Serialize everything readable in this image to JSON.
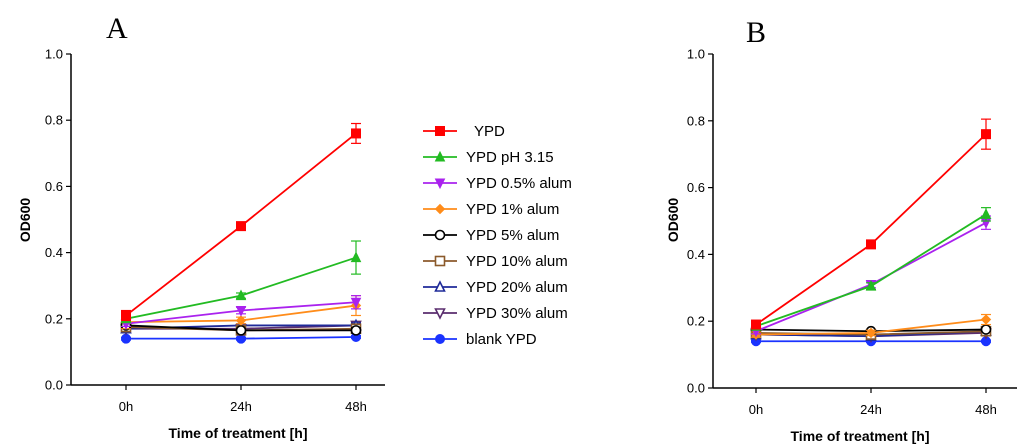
{
  "legend": {
    "entries": [
      {
        "label": "YPD",
        "color": "#ff0000",
        "marker": "square"
      },
      {
        "label": "YPD pH 3.15",
        "color": "#22bb22",
        "marker": "triangle-up"
      },
      {
        "label": "YPD 0.5% alum",
        "color": "#aa22ee",
        "marker": "triangle-down"
      },
      {
        "label": "YPD 1% alum",
        "color": "#ff8c1a",
        "marker": "diamond"
      },
      {
        "label": "YPD 5% alum",
        "color": "#000000",
        "marker": "circle-open"
      },
      {
        "label": "YPD 10% alum",
        "color": "#8b5a2b",
        "marker": "square-open"
      },
      {
        "label": "YPD 20% alum",
        "color": "#1f2a99",
        "marker": "triangle-up-open"
      },
      {
        "label": "YPD 30% alum",
        "color": "#5a2d6e",
        "marker": "triangle-down-open"
      },
      {
        "label": "blank YPD",
        "color": "#1a33ff",
        "marker": "circle"
      }
    ]
  },
  "chart_data": [
    {
      "panel": "A",
      "type": "line",
      "xlabel": "Time of treatment [h]",
      "ylabel": "OD600",
      "categories": [
        "0h",
        "24h",
        "48h"
      ],
      "ylim": [
        0,
        1.0
      ],
      "yticks": [
        "0.0",
        "0.2",
        "0.4",
        "0.6",
        "0.8",
        "1.0"
      ],
      "series": [
        {
          "name": "YPD",
          "values": [
            0.21,
            0.48,
            0.76
          ],
          "err": [
            0.015,
            0.008,
            0.03
          ]
        },
        {
          "name": "YPD pH 3.15",
          "values": [
            0.2,
            0.27,
            0.385
          ],
          "err": [
            0.008,
            0.008,
            0.05
          ]
        },
        {
          "name": "YPD 0.5% alum",
          "values": [
            0.185,
            0.225,
            0.25
          ],
          "err": [
            0.008,
            0.01,
            0.02
          ]
        },
        {
          "name": "YPD 1% alum",
          "values": [
            0.19,
            0.195,
            0.24
          ],
          "err": [
            0.02,
            0.01,
            0.03
          ]
        },
        {
          "name": "YPD 5% alum",
          "values": [
            0.18,
            0.165,
            0.165
          ],
          "err": [
            0.008,
            0.005,
            0.008
          ]
        },
        {
          "name": "YPD 10% alum",
          "values": [
            0.175,
            0.165,
            0.17
          ],
          "err": [
            0.008,
            0.005,
            0.008
          ]
        },
        {
          "name": "YPD 20% alum",
          "values": [
            0.17,
            0.18,
            0.18
          ],
          "err": [
            0.008,
            0.005,
            0.008
          ]
        },
        {
          "name": "YPD 30% alum",
          "values": [
            0.17,
            0.17,
            0.18
          ],
          "err": [
            0.008,
            0.005,
            0.008
          ]
        },
        {
          "name": "blank YPD",
          "values": [
            0.14,
            0.14,
            0.145
          ],
          "err": [
            0.004,
            0.004,
            0.004
          ]
        }
      ]
    },
    {
      "panel": "B",
      "type": "line",
      "xlabel": "Time of treatment [h]",
      "ylabel": "OD600",
      "categories": [
        "0h",
        "24h",
        "48h"
      ],
      "ylim": [
        0,
        1.0
      ],
      "yticks": [
        "0.0",
        "0.2",
        "0.4",
        "0.6",
        "0.8",
        "1.0"
      ],
      "series": [
        {
          "name": "YPD",
          "values": [
            0.19,
            0.43,
            0.76
          ],
          "err": [
            0.008,
            0.008,
            0.045
          ]
        },
        {
          "name": "YPD pH 3.15",
          "values": [
            0.185,
            0.305,
            0.52
          ],
          "err": [
            0.008,
            0.01,
            0.02
          ]
        },
        {
          "name": "YPD 0.5% alum",
          "values": [
            0.17,
            0.31,
            0.495
          ],
          "err": [
            0.008,
            0.01,
            0.02
          ]
        },
        {
          "name": "YPD 1% alum",
          "values": [
            0.16,
            0.165,
            0.205
          ],
          "err": [
            0.008,
            0.008,
            0.015
          ]
        },
        {
          "name": "YPD 5% alum",
          "values": [
            0.175,
            0.17,
            0.175
          ],
          "err": [
            0.005,
            0.005,
            0.005
          ]
        },
        {
          "name": "YPD 10% alum",
          "values": [
            0.165,
            0.16,
            0.17
          ],
          "err": [
            0.005,
            0.005,
            0.005
          ]
        },
        {
          "name": "YPD 20% alum",
          "values": [
            0.16,
            0.155,
            0.17
          ],
          "err": [
            0.005,
            0.005,
            0.005
          ]
        },
        {
          "name": "YPD 30% alum",
          "values": [
            0.16,
            0.155,
            0.165
          ],
          "err": [
            0.005,
            0.005,
            0.005
          ]
        },
        {
          "name": "blank YPD",
          "values": [
            0.14,
            0.14,
            0.14
          ],
          "err": [
            0.003,
            0.003,
            0.003
          ]
        }
      ]
    }
  ]
}
